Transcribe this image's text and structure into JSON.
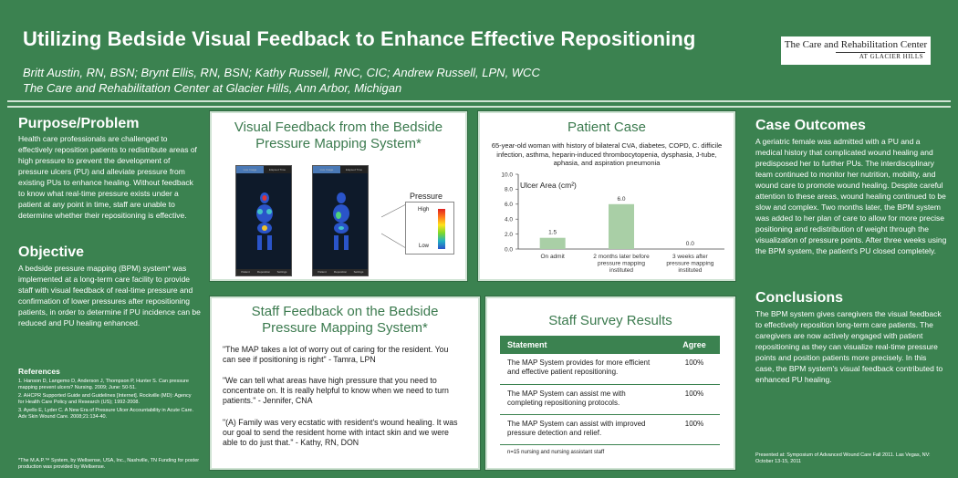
{
  "header": {
    "title": "Utilizing Bedside Visual Feedback to Enhance Effective Repositioning",
    "authors": "Britt Austin, RN, BSN; Brynt Ellis, RN, BSN; Kathy Russell, RNC, CIC; Andrew Russell, LPN, WCC",
    "institution": "The Care and Rehabilitation Center at Glacier Hills, Ann Arbor, Michigan",
    "logo_line1": "The Care and Rehabilitation Center",
    "logo_line2": "AT GLACIER HILLS"
  },
  "left": {
    "purpose_heading": "Purpose/Problem",
    "purpose_text": "Health care professionals are challenged to effectively reposition patients to redistribute areas of high pressure to prevent the development of pressure ulcers (PU) and alleviate pressure from existing PUs to enhance healing. Without feedback to know what real-time pressure exists under a patient at any point in time, staff are unable to determine whether their repositioning is effective.",
    "objective_heading": "Objective",
    "objective_text": "A bedside pressure mapping (BPM) system* was implemented at a long-term care facility to provide staff with visual feedback of real-time pressure and confirmation of lower pressures after repositioning patients, in order to determine if PU incidence can be reduced and PU healing enhanced.",
    "references_heading": "References",
    "references": [
      "1. Hanson D, Langemo D, Anderson J, Thompson P, Hunter S. Can pressure mapping prevent ulcers? Nursing. 2009; June: 50-51.",
      "2. AHCPR Supported Guide and Guidelines [Internet]. Rockville (MD): Agency for Health Care Policy and Research (US); 1992-2008.",
      "3. Ayello E, Lyder C. A New Era of Pressure Ulcer Accountability in Acute Care. Adv Skin Wound Care. 2008;21:134-40."
    ],
    "footnote": "*The M.A.P.™ System, by Wellsense, USA, Inc., Nashville, TN Funding for poster production was provided by Wellsense."
  },
  "visual_panel": {
    "title": "Visual Feedback from the Bedside Pressure Mapping System*",
    "tab_live": "Live Image",
    "tab_elapsed": "Elapsed Time",
    "footer_items": [
      "Patient",
      "Reposition",
      "Settings"
    ],
    "pressure_label": "Pressure",
    "high_label": "High",
    "low_label": "Low"
  },
  "patient_panel": {
    "title": "Patient Case",
    "description": "65-year-old woman with history of bilateral CVA, diabetes, COPD, C. difficile infection, asthma, heparin-induced thrombocytopenia, dysphasia, J-tube, aphasia, and aspiration pneumonia"
  },
  "chart_data": {
    "type": "bar",
    "title": "Ulcer Area (cm²)",
    "categories": [
      "On admit",
      "2 months later before pressure mapping instituted",
      "3 weeks after pressure mapping instituted"
    ],
    "category_lines": [
      [
        "On admit"
      ],
      [
        "2 months later before",
        "pressure mapping",
        "instituted"
      ],
      [
        "3 weeks after",
        "pressure mapping",
        "instituted"
      ]
    ],
    "values": [
      1.5,
      6.0,
      0.0
    ],
    "value_labels": [
      "1.5",
      "6.0",
      "0.0"
    ],
    "ylim": [
      0,
      10
    ],
    "yticks": [
      "0.0",
      "2.0",
      "4.0",
      "6.0",
      "8.0",
      "10.0"
    ],
    "bar_color": "#a9cfa6",
    "grid": false
  },
  "staff_panel": {
    "title": "Staff Feedback on the Bedside Pressure Mapping System*",
    "quotes": [
      "\"The MAP takes a lot of worry out of caring for the resident. You can see if positioning is right\" - Tamra, LPN",
      "\"We can tell what areas have high pressure that you need to concentrate on.  It is really helpful to know when we need to turn patients.\" -  Jennifer, CNA",
      "\"(A) Family was very ecstatic with resident's wound healing. It was our goal to send the resident home with intact skin and we were able to do just that.\" -  Kathy, RN, DON"
    ]
  },
  "survey_panel": {
    "title": "Staff Survey Results",
    "col_statement": "Statement",
    "col_agree": "Agree",
    "rows": [
      {
        "statement": "The MAP System provides for more efficient and effective patient repositioning.",
        "agree": "100%"
      },
      {
        "statement": "The MAP System can assist me with completing repositioning protocols.",
        "agree": "100%"
      },
      {
        "statement": "The MAP System can assist with improved pressure detection and relief.",
        "agree": "100%"
      }
    ],
    "note": "n=15 nursing and nursing assistant staff"
  },
  "right": {
    "outcomes_heading": "Case Outcomes",
    "outcomes_text": "A geriatric female was admitted with a PU and a medical history that complicated wound healing and predisposed her to further PUs. The interdisciplinary team continued to monitor her nutrition, mobility, and wound care to promote wound healing. Despite careful attention to these areas, wound healing continued to be slow and complex. Two months later, the BPM system was added to her plan of care to allow for more precise positioning and redistribution of weight through the visualization of pressure points.  After three weeks using the BPM system, the patient's PU closed completely.",
    "conclusions_heading": "Conclusions",
    "conclusions_text": "The BPM system gives caregivers the visual feedback to effectively reposition long-term care patients.  The caregivers are now actively engaged with patient repositioning as they can visualize real-time pressure points and position patients more precisely.  In this case, the BPM system's visual feedback contributed to enhanced PU healing.",
    "presented": "Presented at:  Symposium of Advanced Wound Care Fall 2011. Las Vegas, NV: October 13-15, 2011"
  }
}
